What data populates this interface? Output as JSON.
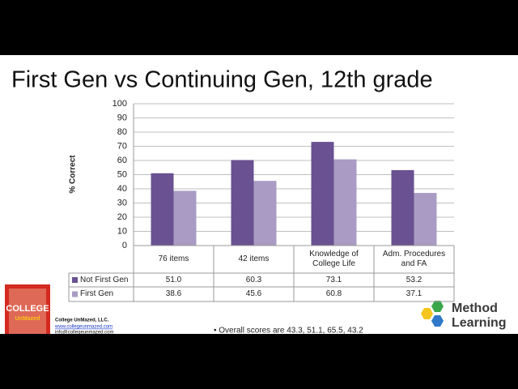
{
  "chart_data": {
    "type": "bar",
    "title": "First Gen vs Continuing Gen, 12th grade",
    "y_label": "% Correct",
    "categories": [
      "76 items",
      "42 items",
      "Knowledge of College Life",
      "Adm. Procedures and FA"
    ],
    "series": [
      {
        "name": "Not First Gen",
        "color": "#6a5191",
        "values": [
          51.0,
          60.3,
          73.1,
          53.2
        ],
        "value_labels": [
          "51.0",
          "60.3",
          "73.1",
          "53.2"
        ]
      },
      {
        "name": "First Gen",
        "color": "#a99bc3",
        "values": [
          38.6,
          45.6,
          60.8,
          37.1
        ],
        "value_labels": [
          "38.6",
          "45.6",
          "60.8",
          "37.1"
        ]
      }
    ],
    "ylim": [
      0,
      100
    ],
    "yticks": [
      0,
      10,
      20,
      30,
      40,
      50,
      60,
      70,
      80,
      90,
      100
    ],
    "grid": true
  },
  "footer": {
    "company": "College UnMazed, LLC.",
    "website": "www.collegeunmazed.com",
    "email": "info@collegeunmazed.com",
    "bullet": "• Overall scores are 43.3, 51.1, 65.5, 43.2",
    "book_title": "COLLEGE",
    "book_subtitle": "UnMazed",
    "logo_line1": "Method",
    "logo_line2": "Learning"
  }
}
